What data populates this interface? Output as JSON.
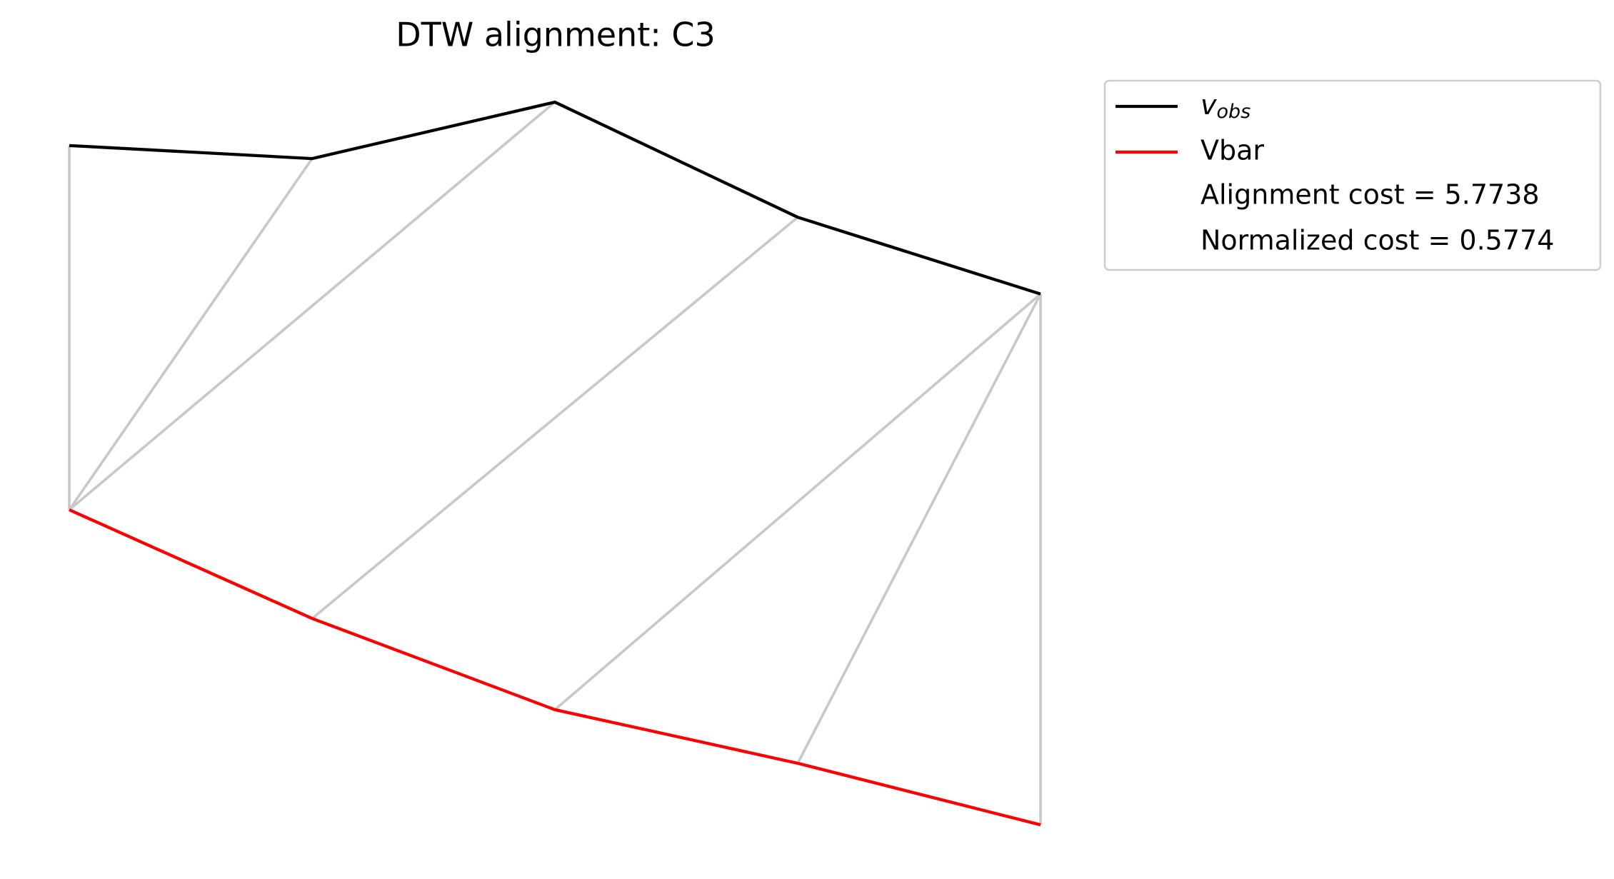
{
  "chart_data": {
    "type": "dtw",
    "title": "DTW alignment: C3",
    "x": [
      0,
      1,
      2,
      3,
      4
    ],
    "xlim": [
      0,
      4
    ],
    "ylim": [
      0,
      12
    ],
    "series": [
      {
        "name": "v_obs",
        "color": "#000000",
        "values": [
          9.99,
          9.81,
          10.59,
          9.0,
          7.94
        ]
      },
      {
        "name": "Vbar",
        "color": "#ff0000",
        "values": [
          4.96,
          3.46,
          2.2,
          1.46,
          0.61
        ]
      }
    ],
    "alignment": [
      [
        0,
        0
      ],
      [
        1,
        0
      ],
      [
        2,
        0
      ],
      [
        3,
        1
      ],
      [
        4,
        2
      ],
      [
        4,
        3
      ],
      [
        4,
        4
      ]
    ],
    "alignment_color": "#c8c8c8",
    "annotations": [
      "Alignment cost = 5.7738",
      "Normalized cost = 0.5774"
    ]
  }
}
